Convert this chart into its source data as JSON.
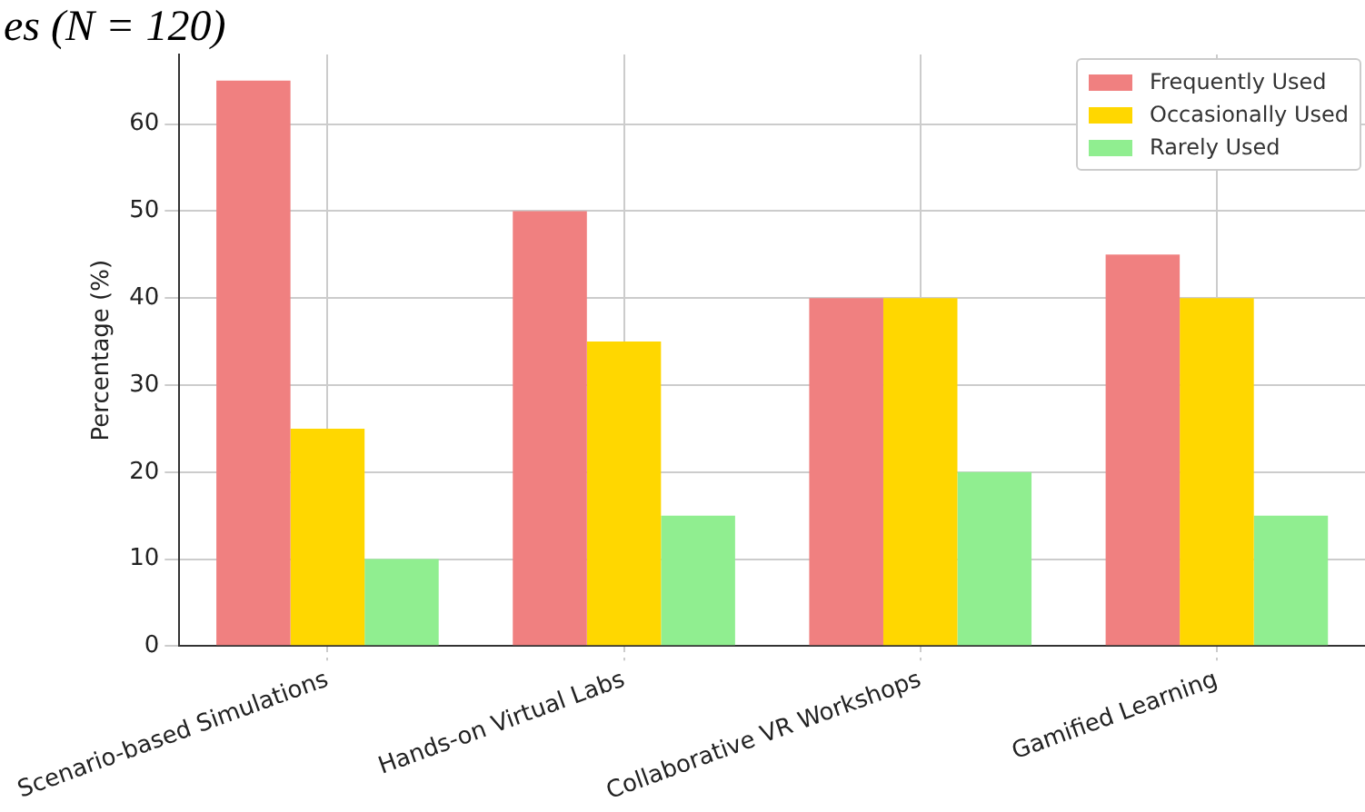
{
  "chart_data": {
    "type": "bar",
    "title": "es (N = 120)",
    "ylabel": "Percentage (%)",
    "categories": [
      "Scenario-based Simulations",
      "Hands-on Virtual Labs",
      "Collaborative VR Workshops",
      "Gamified Learning"
    ],
    "series": [
      {
        "name": "Frequently Used",
        "color": "#f08080",
        "values": [
          65,
          50,
          40,
          45
        ]
      },
      {
        "name": "Occasionally Used",
        "color": "#ffd700",
        "values": [
          25,
          35,
          40,
          40
        ]
      },
      {
        "name": "Rarely Used",
        "color": "#90ee90",
        "values": [
          10,
          15,
          20,
          15
        ]
      }
    ],
    "ylim": [
      0,
      68
    ],
    "yticks": [
      0,
      10,
      20,
      30,
      40,
      50,
      60
    ],
    "grid": true,
    "legend": "top right"
  }
}
